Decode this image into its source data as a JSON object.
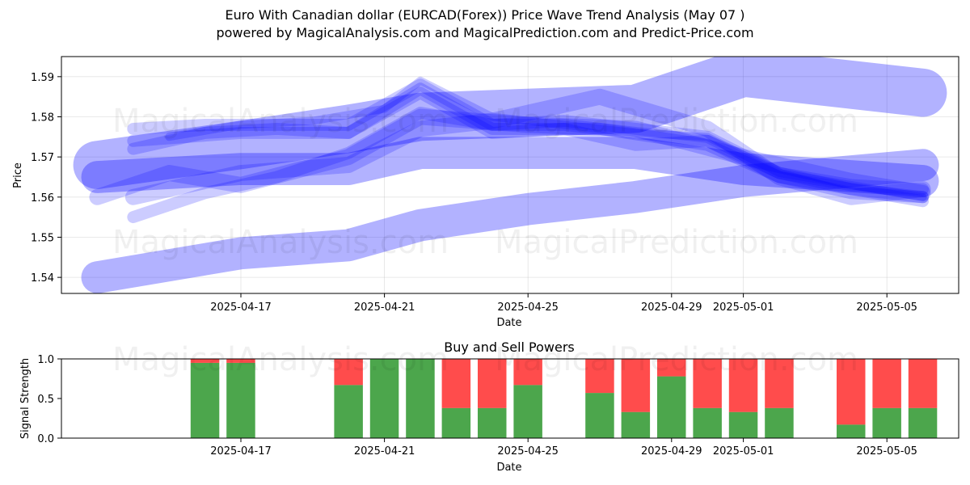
{
  "title_line1": "Euro With Canadian dollar (EURCAD(Forex)) Price Wave Trend Analysis (May 07 )",
  "title_line2": "powered by MagicalAnalysis.com and MagicalPrediction.com and Predict-Price.com",
  "watermarks": [
    "MagicalAnalysis.com",
    "MagicalPrediction.com"
  ],
  "colors": {
    "band": "#0000ff",
    "buy": "#008000",
    "sell": "#ff0000",
    "grid": "#b0b0b0"
  },
  "chart_data": [
    {
      "type": "area",
      "title": "",
      "xlabel": "Date",
      "ylabel": "Price",
      "xlim": [
        "2025-04-12",
        "2025-05-07"
      ],
      "ylim": [
        1.536,
        1.595
      ],
      "grid": true,
      "x_ticks": [
        "2025-04-17",
        "2025-04-21",
        "2025-04-25",
        "2025-04-29",
        "2025-05-01",
        "2025-05-05"
      ],
      "y_ticks": [
        1.54,
        1.55,
        1.56,
        1.57,
        1.58,
        1.59
      ],
      "series": [
        {
          "x": [
            "2025-04-13",
            "2025-04-17",
            "2025-04-20",
            "2025-04-22",
            "2025-04-25",
            "2025-04-28",
            "2025-05-01",
            "2025-05-06"
          ],
          "values": [
            1.54,
            1.546,
            1.548,
            1.553,
            1.557,
            1.56,
            1.564,
            1.568
          ],
          "width": 0.008,
          "opacity": 0.3
        },
        {
          "x": [
            "2025-04-13",
            "2025-04-17",
            "2025-04-20",
            "2025-04-22",
            "2025-04-25",
            "2025-04-28",
            "2025-05-01",
            "2025-05-06"
          ],
          "values": [
            1.568,
            1.573,
            1.577,
            1.58,
            1.581,
            1.582,
            1.591,
            1.586
          ],
          "width": 0.012,
          "opacity": 0.3
        },
        {
          "x": [
            "2025-04-13",
            "2025-04-17",
            "2025-04-20",
            "2025-04-22",
            "2025-04-25",
            "2025-04-28",
            "2025-05-01",
            "2025-05-06"
          ],
          "values": [
            1.565,
            1.567,
            1.567,
            1.571,
            1.571,
            1.571,
            1.567,
            1.564
          ],
          "width": 0.008,
          "opacity": 0.3
        },
        {
          "x": [
            "2025-04-14",
            "2025-04-17",
            "2025-04-20",
            "2025-04-22",
            "2025-04-24",
            "2025-04-27",
            "2025-04-30",
            "2025-05-02",
            "2025-05-04",
            "2025-05-06"
          ],
          "values": [
            1.574,
            1.576,
            1.576,
            1.587,
            1.577,
            1.577,
            1.573,
            1.565,
            1.562,
            1.559
          ],
          "width": 0.003,
          "opacity": 0.2
        },
        {
          "x": [
            "2025-04-14",
            "2025-04-16",
            "2025-04-18",
            "2025-04-20",
            "2025-04-22",
            "2025-04-24",
            "2025-04-26",
            "2025-04-28",
            "2025-04-30",
            "2025-05-02",
            "2025-05-04",
            "2025-05-06"
          ],
          "values": [
            1.577,
            1.578,
            1.578,
            1.578,
            1.588,
            1.578,
            1.578,
            1.576,
            1.574,
            1.566,
            1.562,
            1.56
          ],
          "width": 0.003,
          "opacity": 0.2
        },
        {
          "x": [
            "2025-04-14",
            "2025-04-16",
            "2025-04-18",
            "2025-04-20",
            "2025-04-22",
            "2025-04-24",
            "2025-04-26",
            "2025-04-28",
            "2025-04-30",
            "2025-05-02",
            "2025-05-04",
            "2025-05-06"
          ],
          "values": [
            1.572,
            1.576,
            1.577,
            1.576,
            1.586,
            1.576,
            1.577,
            1.573,
            1.574,
            1.565,
            1.561,
            1.56
          ],
          "width": 0.003,
          "opacity": 0.2
        },
        {
          "x": [
            "2025-04-14",
            "2025-04-17",
            "2025-04-20",
            "2025-04-22",
            "2025-04-24",
            "2025-04-27",
            "2025-04-30",
            "2025-05-02",
            "2025-05-04",
            "2025-05-06"
          ],
          "values": [
            1.56,
            1.566,
            1.568,
            1.577,
            1.579,
            1.585,
            1.577,
            1.565,
            1.56,
            1.562
          ],
          "width": 0.004,
          "opacity": 0.2
        },
        {
          "x": [
            "2025-04-13",
            "2025-04-15",
            "2025-04-17",
            "2025-04-20",
            "2025-04-22",
            "2025-04-25",
            "2025-04-28",
            "2025-05-01",
            "2025-05-04",
            "2025-05-06"
          ],
          "values": [
            1.56,
            1.566,
            1.563,
            1.57,
            1.58,
            1.578,
            1.577,
            1.57,
            1.564,
            1.561
          ],
          "width": 0.004,
          "opacity": 0.2
        },
        {
          "x": [
            "2025-04-14",
            "2025-04-16",
            "2025-04-18",
            "2025-04-20",
            "2025-04-22",
            "2025-04-24",
            "2025-04-26",
            "2025-04-28",
            "2025-04-30",
            "2025-05-02",
            "2025-05-04",
            "2025-05-06"
          ],
          "values": [
            1.555,
            1.561,
            1.565,
            1.571,
            1.581,
            1.578,
            1.579,
            1.577,
            1.575,
            1.566,
            1.563,
            1.562
          ],
          "width": 0.003,
          "opacity": 0.2
        },
        {
          "x": [
            "2025-04-15",
            "2025-04-17",
            "2025-04-19",
            "2025-04-21",
            "2025-04-22",
            "2025-04-24",
            "2025-04-26",
            "2025-04-28",
            "2025-04-30",
            "2025-05-02",
            "2025-05-04",
            "2025-05-06"
          ],
          "values": [
            1.575,
            1.578,
            1.579,
            1.582,
            1.589,
            1.58,
            1.578,
            1.576,
            1.575,
            1.566,
            1.563,
            1.56
          ],
          "width": 0.002,
          "opacity": 0.2
        }
      ]
    },
    {
      "type": "bar",
      "title": "Buy and Sell Powers",
      "xlabel": "Date",
      "ylabel": "Signal Strength",
      "xlim": [
        "2025-04-12",
        "2025-05-07"
      ],
      "ylim": [
        0,
        1.0
      ],
      "x_ticks": [
        "2025-04-17",
        "2025-04-21",
        "2025-04-25",
        "2025-04-29",
        "2025-05-01",
        "2025-05-05"
      ],
      "y_ticks": [
        "0.0",
        "0.5",
        "1.0"
      ],
      "categories": [
        "2025-04-16",
        "2025-04-17",
        "2025-04-20",
        "2025-04-21",
        "2025-04-22",
        "2025-04-23",
        "2025-04-24",
        "2025-04-25",
        "2025-04-27",
        "2025-04-28",
        "2025-04-29",
        "2025-04-30",
        "2025-05-01",
        "2025-05-02",
        "2025-05-04",
        "2025-05-05",
        "2025-05-06"
      ],
      "series": [
        {
          "name": "Buy",
          "values": [
            0.95,
            0.95,
            0.67,
            1.0,
            1.0,
            0.38,
            0.38,
            0.67,
            0.57,
            0.33,
            0.78,
            0.38,
            0.33,
            0.38,
            0.17,
            0.38,
            0.38
          ]
        },
        {
          "name": "Sell",
          "values": [
            0.05,
            0.05,
            0.33,
            0.0,
            0.0,
            0.62,
            0.62,
            0.33,
            0.43,
            0.67,
            0.22,
            0.62,
            0.67,
            0.62,
            0.83,
            0.62,
            0.62
          ]
        }
      ]
    }
  ]
}
